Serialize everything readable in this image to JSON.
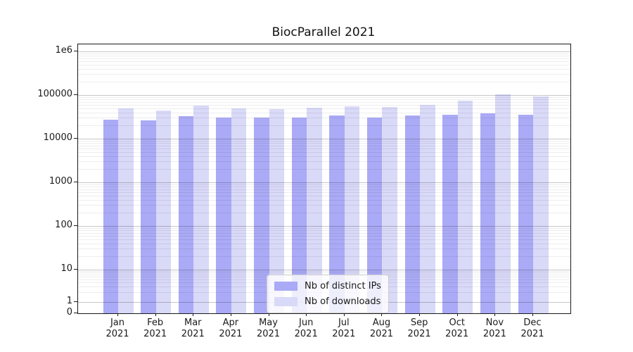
{
  "title": "BiocParallel 2021",
  "colors": {
    "bar_distinct_ips": "#aaaaf6",
    "bar_downloads": "#d9d9f8",
    "spine": "#1a1a1a",
    "grid_major": "#c8c8c8",
    "grid_minor": "#ececec",
    "legend_border": "#cccccc",
    "background": "#ffffff"
  },
  "chart_data": {
    "type": "bar",
    "title": "BiocParallel 2021",
    "categories": [
      "Jan",
      "Feb",
      "Mar",
      "Apr",
      "May",
      "Jun",
      "Jul",
      "Aug",
      "Sep",
      "Oct",
      "Nov",
      "Dec"
    ],
    "year_label": "2021",
    "series": [
      {
        "name": "Nb of distinct IPs",
        "color": "#aaaaf6",
        "values": [
          27000,
          26000,
          33000,
          30000,
          30000,
          31000,
          34000,
          31000,
          34000,
          36000,
          38000,
          35000
        ]
      },
      {
        "name": "Nb of downloads",
        "color": "#d9d9f8",
        "values": [
          50000,
          45000,
          57000,
          50000,
          48000,
          52000,
          56000,
          54000,
          60000,
          75000,
          105000,
          92000
        ]
      }
    ],
    "yscale": "symlog",
    "yticks": [
      {
        "label": "0",
        "value": 0
      },
      {
        "label": "1",
        "value": 1
      },
      {
        "label": "10",
        "value": 10
      },
      {
        "label": "100",
        "value": 100
      },
      {
        "label": "1000",
        "value": 1000
      },
      {
        "label": "10000",
        "value": 10000
      },
      {
        "label": "100000",
        "value": 100000
      },
      {
        "label": "1e6",
        "value": 1000000
      }
    ],
    "ylim": [
      0,
      2000000
    ],
    "grid": true,
    "legend_position": "lower center"
  }
}
